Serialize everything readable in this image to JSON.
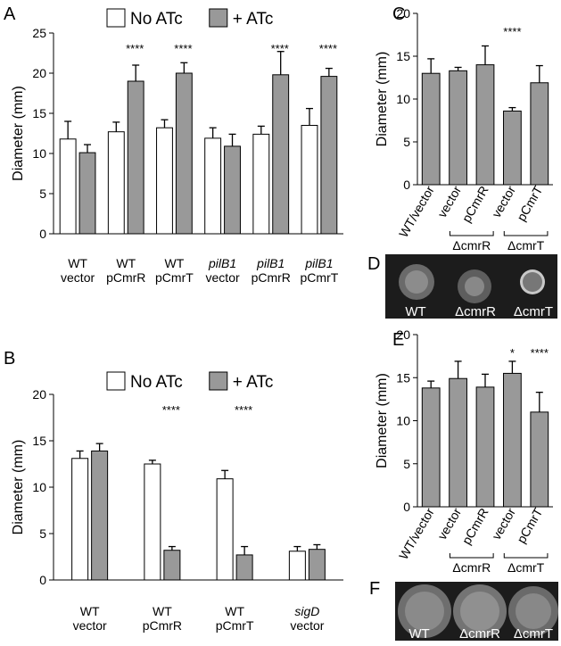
{
  "chart_data": [
    {
      "panel": "A",
      "type": "bar",
      "ylabel": "Diameter (mm)",
      "categories": [
        [
          "WT",
          "vector"
        ],
        [
          "WT",
          "pCmrR"
        ],
        [
          "WT",
          "pCmrT"
        ],
        [
          "pilB1",
          "vector"
        ],
        [
          "pilB1",
          "pCmrR"
        ],
        [
          "pilB1",
          "pCmrT"
        ]
      ],
      "italic_first_line": [
        false,
        false,
        false,
        true,
        true,
        true
      ],
      "series": [
        {
          "name": "No ATc",
          "color": "#ffffff",
          "values": [
            11.8,
            12.7,
            13.2,
            11.9,
            12.4,
            13.5
          ],
          "errors": [
            2.2,
            1.2,
            1.0,
            1.3,
            1.0,
            2.1
          ]
        },
        {
          "name": "+ ATc",
          "color": "#999999",
          "values": [
            10.1,
            19.0,
            20.0,
            10.9,
            19.8,
            19.6
          ],
          "errors": [
            1.0,
            2.0,
            1.3,
            1.5,
            2.9,
            1.0
          ]
        }
      ],
      "annotations": [
        null,
        "****",
        "****",
        null,
        "****",
        "****"
      ],
      "ylim": [
        0,
        25
      ],
      "yticks": [
        0,
        5,
        10,
        15,
        20,
        25
      ]
    },
    {
      "panel": "B",
      "type": "bar",
      "ylabel": "Diameter (mm)",
      "categories": [
        [
          "WT",
          "vector"
        ],
        [
          "WT",
          "pCmrR"
        ],
        [
          "WT",
          "pCmrT"
        ],
        [
          "sigD",
          "vector"
        ]
      ],
      "italic_first_line": [
        false,
        false,
        false,
        true
      ],
      "series": [
        {
          "name": "No ATc",
          "color": "#ffffff",
          "values": [
            13.1,
            12.5,
            10.9,
            3.1
          ],
          "errors": [
            0.8,
            0.4,
            0.9,
            0.5
          ]
        },
        {
          "name": "+ ATc",
          "color": "#999999",
          "values": [
            13.9,
            3.2,
            2.7,
            3.3
          ],
          "errors": [
            0.8,
            0.4,
            0.9,
            0.5
          ]
        }
      ],
      "annotations": [
        null,
        "****",
        "****",
        null
      ],
      "ylim": [
        0,
        20
      ],
      "yticks": [
        0,
        5,
        10,
        15,
        20
      ]
    },
    {
      "panel": "C",
      "type": "bar",
      "ylabel": "Diameter (mm)",
      "categories": [
        "WT/vector",
        "vector",
        "pCmrR",
        "vector",
        "pCmrT"
      ],
      "groups": [
        {
          "label": "ΔcmrR",
          "span": [
            1,
            2
          ]
        },
        {
          "label": "ΔcmrT",
          "span": [
            3,
            4
          ]
        }
      ],
      "series": [
        {
          "color": "#999999",
          "values": [
            13.0,
            13.3,
            14.0,
            8.6,
            11.9
          ],
          "errors": [
            1.7,
            0.4,
            2.2,
            0.4,
            2.0
          ]
        }
      ],
      "annotations": [
        null,
        null,
        null,
        "****",
        null
      ],
      "ylim": [
        0,
        20
      ],
      "yticks": [
        0,
        5,
        10,
        15,
        20
      ]
    },
    {
      "panel": "E",
      "type": "bar",
      "ylabel": "Diameter (mm)",
      "categories": [
        "WT/vector",
        "vector",
        "pCmrR",
        "vector",
        "pCmrT"
      ],
      "groups": [
        {
          "label": "ΔcmrR",
          "span": [
            1,
            2
          ]
        },
        {
          "label": "ΔcmrT",
          "span": [
            3,
            4
          ]
        }
      ],
      "series": [
        {
          "color": "#999999",
          "values": [
            13.8,
            14.9,
            13.9,
            15.5,
            11.0
          ],
          "errors": [
            0.8,
            2.0,
            1.5,
            1.4,
            2.3
          ]
        }
      ],
      "annotations": [
        null,
        null,
        null,
        "*",
        "****"
      ],
      "ylim": [
        0,
        20
      ],
      "yticks": [
        0,
        5,
        10,
        15,
        20
      ]
    }
  ],
  "images": [
    {
      "panel": "D",
      "labels": [
        "WT",
        "ΔcmrR",
        "ΔcmrT"
      ]
    },
    {
      "panel": "F",
      "labels": [
        "WT",
        "ΔcmrR",
        "ΔcmrT"
      ]
    }
  ]
}
